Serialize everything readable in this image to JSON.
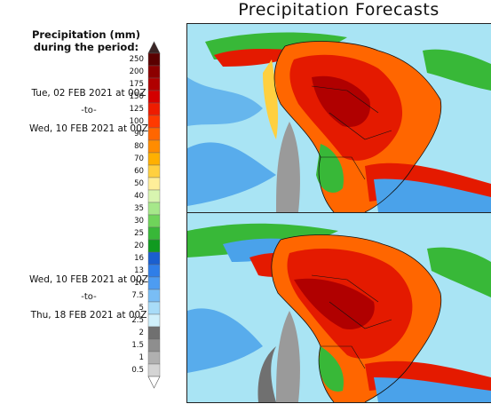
{
  "title": "Precipitation Forecasts",
  "legend": {
    "title_line1": "Precipitation (mm)",
    "title_line2": "during the period:",
    "unit": "mm",
    "levels": [
      "250",
      "200",
      "175",
      "150",
      "125",
      "100",
      "90",
      "80",
      "70",
      "60",
      "50",
      "40",
      "35",
      "30",
      "25",
      "20",
      "16",
      "13",
      "10",
      "7.5",
      "5",
      "2.5",
      "2",
      "1.5",
      "1",
      "0.5"
    ],
    "colors": [
      "#5a0000",
      "#8c0000",
      "#b00000",
      "#d40000",
      "#ee1c00",
      "#ff3a00",
      "#ff6600",
      "#ff8c00",
      "#ffb000",
      "#ffd040",
      "#ffee99",
      "#d8f5b0",
      "#a6e88a",
      "#6fd45a",
      "#38b838",
      "#109a20",
      "#1a5fd0",
      "#2f7ee8",
      "#4d9cf2",
      "#79bdf5",
      "#a8dcf8",
      "#d0f0fb",
      "#707070",
      "#8e8e8e",
      "#b0b0b0",
      "#d4d4d4"
    ]
  },
  "panels": [
    {
      "start_line": "Tue, 02 FEB 2021 at 00Z",
      "separator": "-to-",
      "end_line": "Wed, 10 FEB 2021 at 00Z"
    },
    {
      "start_line": "Wed, 10 FEB 2021 at 00Z",
      "separator": "-to-",
      "end_line": "Thu, 18 FEB 2021 at 00Z"
    }
  ],
  "map_colors": {
    "ocean": "#a9e4f4",
    "light_rain": "#4aa2ea",
    "land_dry": "#9a9a9a",
    "moderate": "#38b838",
    "heavy": "#ff6600",
    "very_heavy": "#e41a00",
    "border": "#111111"
  }
}
